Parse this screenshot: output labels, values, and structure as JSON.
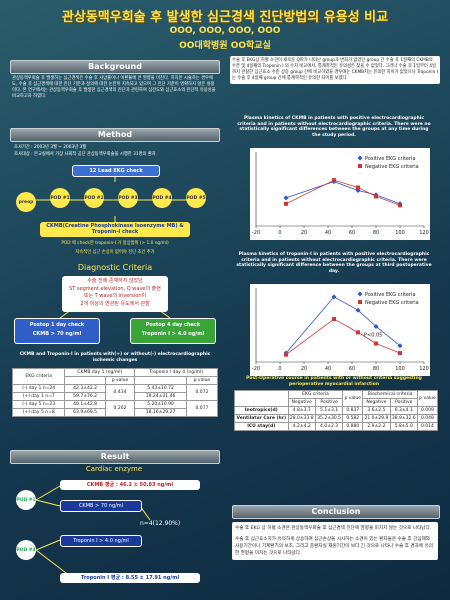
{
  "title": "관상동맥우회술 후 발생한 심근경색 진단방법의 유용성 비교",
  "authors": "OOO, OOO, OOO, OOO",
  "affiliation": "OO대학병원 OO학교실",
  "background": {
    "heading": "Background",
    "text": "관상동맥우회술 후 발생하는 심근경색은 수술 후 사망률이나 이환율에 큰 영향을 미친다. 하지만 시술하는 경우에도, 수술 후 심근경색에 대한 진단 기준과 정의에 대한 논란이 지속되고 있으며 그 진단 기준이 명확하지 않은 실정이다. 본 연구에서는 관상동맥우회술 후 발생한 심근경색의 진단과 관련하여 심전도와 심근효소의 진단적 유용성을 비교하고자 하였다."
  },
  "method": {
    "heading": "Method",
    "bullets": [
      "조사기간 : 2003년 3월 ~ 2003년 3월",
      "조사대상 : 본교실에서 가장 사회적 공단 관상동맥우회술을 시행한 31명의 환자"
    ],
    "ekg_check": "12 Lead EKG check",
    "steps": [
      "preop",
      "POD #1",
      "POD #2",
      "POD #3",
      "POD #4",
      "POD #5"
    ],
    "enzyme_check": "CKMB(Creatine Phosphokinase Isoenzyme MB) & Troponin-I check",
    "notes": [
      "POD 에 check한 troponin-I 가 정상범위 (> 1.0 ng/ml)",
      "지속적인 심근 손상이 없어야 진단 조건 추가"
    ],
    "criteria_heading": "Diagnostic Criteria",
    "criteria": [
      "수술 전에 존재하지 않았던",
      "ST segment elevation, Q wave의 출현",
      "또는 T wave의 inversion이",
      "2개 이상의 연관된 유도에서 관찰"
    ],
    "postop1": [
      "Postop 1 day check",
      "CKMB > 70 ng/ml"
    ],
    "postop4": [
      "Postop 4 day check",
      "Troponin I > 4.0 ng/ml"
    ]
  },
  "table1": {
    "title": "CKMB and Troponin-I in patients with(+) or without(-) electrocardiographic ischemic changes",
    "header": [
      "EKG criteria",
      "CKMB day 1 (ng/ml)",
      "Troponin I day 4 (ng/ml)"
    ],
    "subheader": [
      "p value",
      "p value"
    ],
    "rows": [
      [
        "(-) day 1 n=24",
        "42.3±42.2",
        "5.43±10.72"
      ],
      [
        "(+) day 1 n=7",
        "59.7±76.2",
        "19.24±31.46"
      ],
      [
        "(-) day 5 n=23",
        "40.1±42.8",
        "5.20±10.90"
      ],
      [
        "(+) day 5 n=8",
        "63.9±69.5",
        "18.16±29.27"
      ]
    ],
    "p": [
      [
        "0.434",
        "0.072"
      ],
      [
        "0.262",
        "0.077"
      ]
    ]
  },
  "result": {
    "heading": "Result",
    "subheading": "Cardiac enzyme",
    "pod1": "POD #1",
    "pod4": "POD #4",
    "ckmb_mean": "CKMB 평균 : 46.2 ± 50.83 ng/ml",
    "ckmb_cut": "CKMB > 70 ng/ml",
    "count": "n=4(12.90%)",
    "trop_cut": "Troponin I > 4.0 ng/ml",
    "trop_mean": "Troponin I 평균 : 8.55 ± 17.91 ng/ml"
  },
  "findings": "수술 후 EKG상 허혈 소견이 새로운 Q파가 나타난 group과 변화가 없었던 group 간 수술 후 1일째의 CKMB의 수준 및 4일째의 Troponin I 의 수치 비교에서, 통계학적인 유의성은 찾을 수 없었다. 그러나 수술 후 1일부터 4일까지 관찰한 심근효소 수준 상승 group 간에 비교하였을 경우에는 CKMB치는 유의한 차이가 없었으나 Troponin I 는 수술 후 4일째 group 간에 통계학적인 유의한 차이를 보였다.",
  "chart_data": [
    {
      "type": "line",
      "title": "Plasma kinetics of CKMB in patients with positive electrocardiographic criteria and in patients without electrocardiographic criteria. There were no statistically significant differences between the groups at any time during the study period.",
      "x": [
        5,
        45,
        65,
        80,
        100
      ],
      "xlim": [
        -20,
        120
      ],
      "xticks": [
        -20,
        0,
        20,
        40,
        60,
        80,
        100,
        120
      ],
      "ylim": [
        0,
        100
      ],
      "legend": "upper right",
      "series": [
        {
          "name": "Positive EKG criteria",
          "color": "#3355cc",
          "marker": "diamond",
          "values": [
            38,
            60,
            48,
            42,
            30
          ]
        },
        {
          "name": "Negative EKG criteria",
          "color": "#d03333",
          "marker": "square",
          "values": [
            30,
            62,
            52,
            40,
            28
          ]
        }
      ]
    },
    {
      "type": "line",
      "title": "Plasma kinetics of troponin-I in patients with positive electrocardiographic criteria and in patients without electrocardiographic criteria. There were statistically significant difference between the groups at third postoperative day.",
      "annotation": "P<0.05",
      "x": [
        5,
        45,
        65,
        80,
        100
      ],
      "xlim": [
        -20,
        120
      ],
      "xticks": [
        -20,
        0,
        20,
        40,
        60,
        80,
        100,
        120
      ],
      "ylim": [
        0,
        100
      ],
      "legend": "upper right",
      "series": [
        {
          "name": "Positive EKG criteria",
          "color": "#3355cc",
          "marker": "diamond",
          "values": [
            12,
            88,
            70,
            48,
            22
          ]
        },
        {
          "name": "Negative EKG criteria",
          "color": "#d03333",
          "marker": "square",
          "values": [
            10,
            58,
            40,
            25,
            12
          ]
        }
      ]
    }
  ],
  "table2": {
    "title": "Post-Operative course in patients with or without criteria suggesting perioperative myocardial infarction",
    "groups": [
      "EKG criteria",
      "Biochemical criteria"
    ],
    "subheader": [
      "Negative",
      "Positive",
      "p value",
      "Negative",
      "Positive",
      "p value"
    ],
    "rows": [
      [
        "Inotropics(d)",
        "4.8±3.7",
        "5.1±3.1",
        "0.837",
        "3.6±2.5",
        "6.3±4.1",
        "0.009"
      ],
      [
        "Ventilator Care (hr)",
        "28.0±33.8",
        "35.2±30.5",
        "0.582",
        "21.0±29.9",
        "38.9±32.6",
        "0.048"
      ],
      [
        "ICU stay(d)",
        "4.2±4.2",
        "4.0±2.3",
        "0.880",
        "2.9±2.2",
        "5.8±5.0",
        "0.014"
      ]
    ]
  },
  "conclusion": {
    "heading": "Conclusion",
    "paragraphs": [
      "수술 후 EKG 상 허혈 소견은 관상동맥우회술 후 심근경색 진단에 영향을 미치지 않는 것으로 나타났다.",
      "수술 후 심근효소치가 유의하게 상승하여 심근손상을 시사하는 소견이 있는 환자들은 수술 후 강심제와 사용기간이나 기계환기의 보조, 그리고 중환자실 재원기간이 보다 긴 것으로 나타나 수술 후 경과에 유의한 영향을 미치는 것으로 나타났다."
    ]
  }
}
